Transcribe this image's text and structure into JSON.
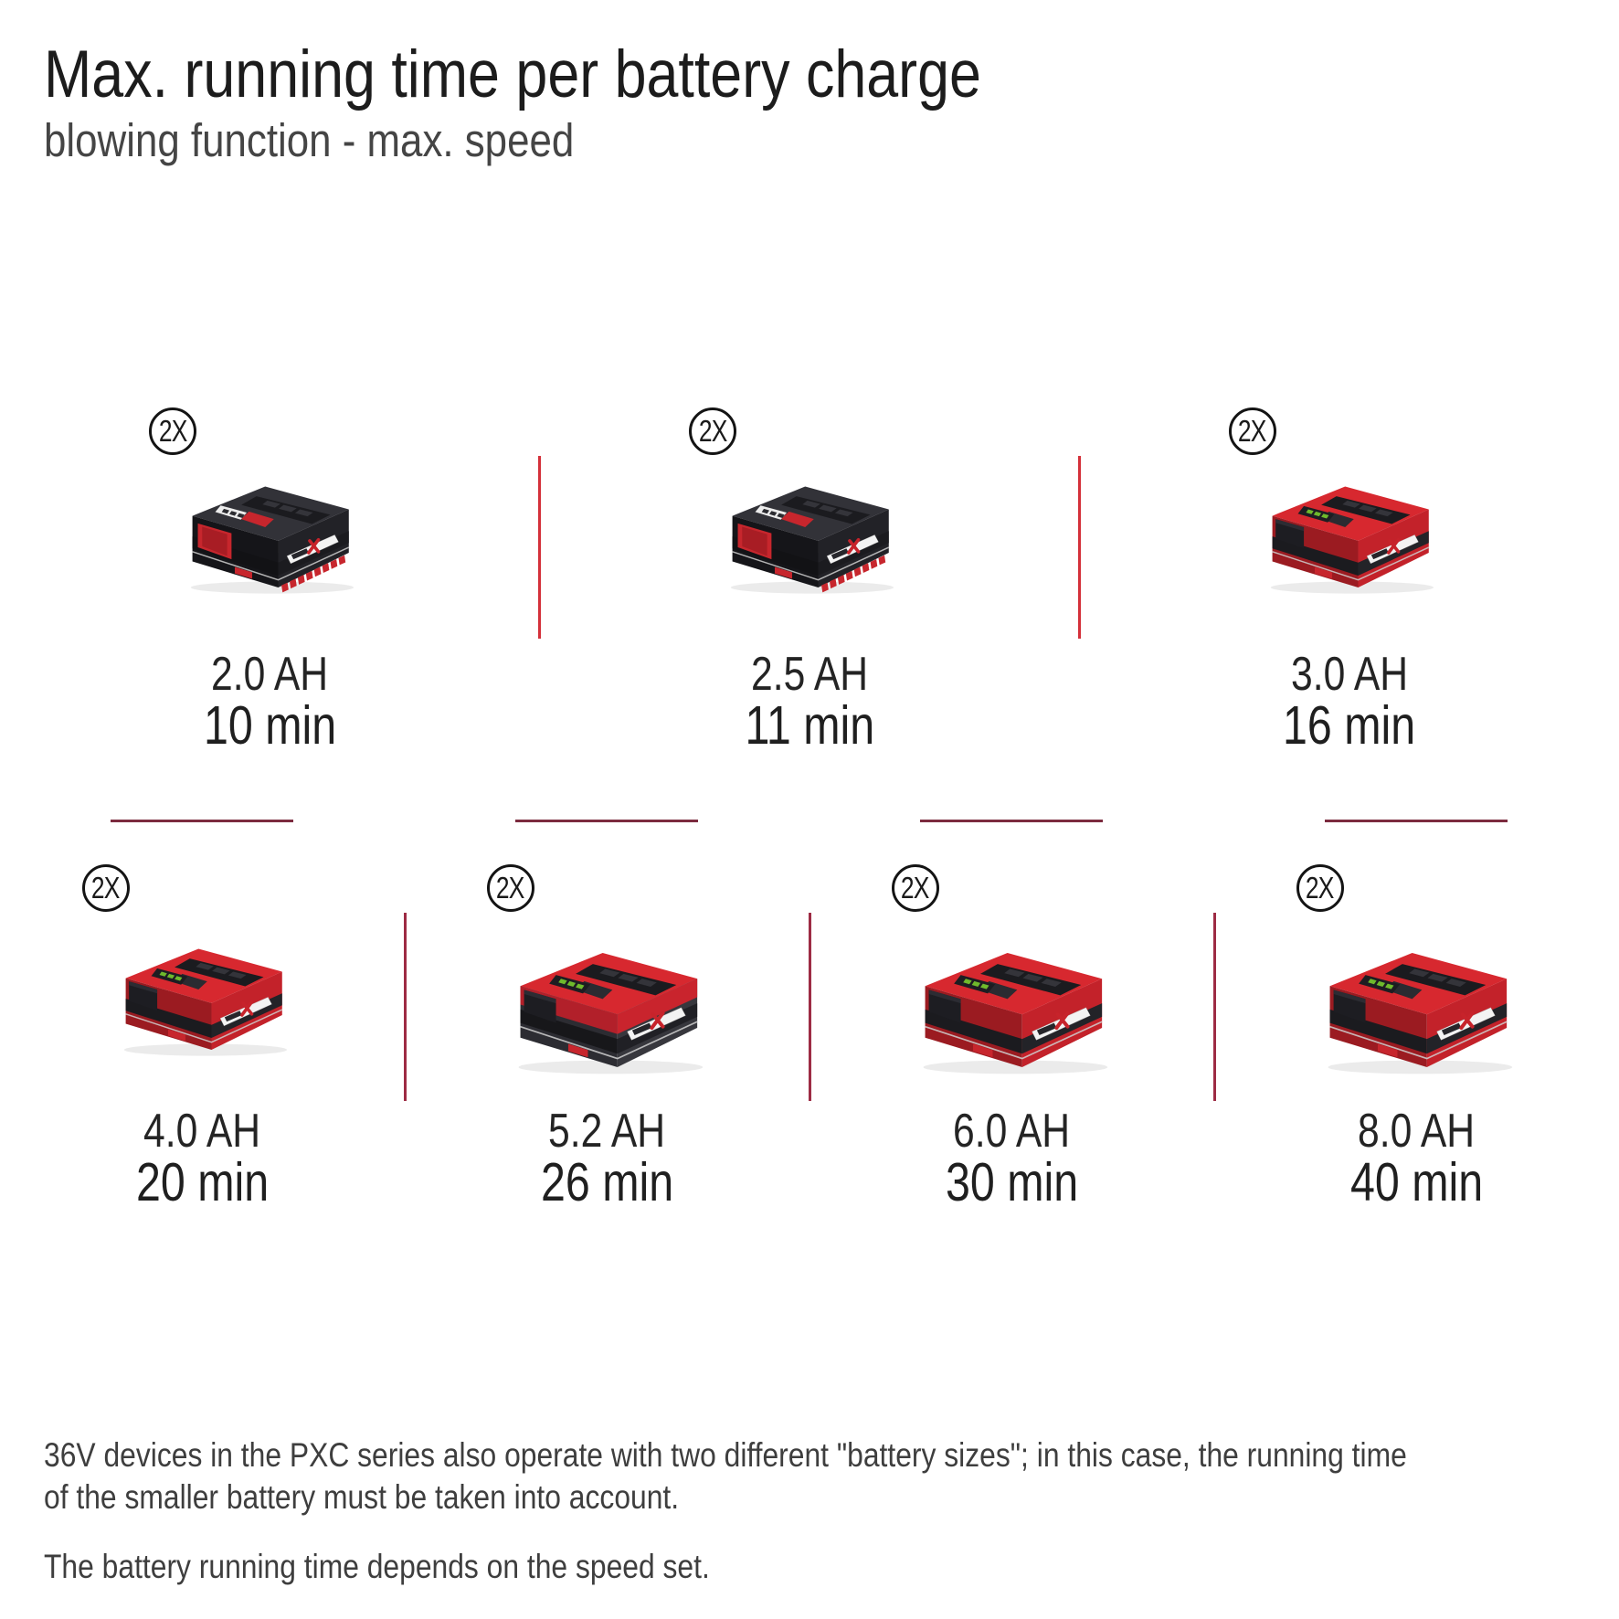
{
  "header": {
    "title": "Max. running time per battery charge",
    "subtitle": "blowing function - max. speed"
  },
  "badge": {
    "label": "2X"
  },
  "rows": [
    {
      "cells": [
        {
          "capacity": "2.0 AH",
          "runtime": "10 min",
          "style": "black-small"
        },
        {
          "capacity": "2.5 AH",
          "runtime": "11 min",
          "style": "black-small"
        },
        {
          "capacity": "3.0 AH",
          "runtime": "16 min",
          "style": "red-small"
        }
      ]
    },
    {
      "cells": [
        {
          "capacity": "4.0 AH",
          "runtime": "20 min",
          "style": "red-small"
        },
        {
          "capacity": "5.2 AH",
          "runtime": "26 min",
          "style": "red-dark-large"
        },
        {
          "capacity": "6.0 AH",
          "runtime": "30 min",
          "style": "red-large"
        },
        {
          "capacity": "8.0 AH",
          "runtime": "40 min",
          "style": "red-large"
        }
      ]
    }
  ],
  "footer": {
    "para1_line1": "36V devices in the PXC series also operate with two different \"battery sizes\"; in this case, the running time",
    "para1_line2": "of the smaller battery must be taken into account.",
    "para2": "The battery running time depends on the speed set."
  },
  "colors": {
    "divider_bright_red": "#d4303a",
    "divider_maroon": "#9d2b44",
    "rule_maroon": "#7c2b3f",
    "einhell_red": "#d4262c",
    "text_dark": "#1f1f1f",
    "text_body": "#3e3e3e",
    "led_green": "#6fba2c"
  },
  "chart_data": {
    "type": "table",
    "title": "Max. running time per battery charge",
    "subtitle": "blowing function - max. speed",
    "categories": [
      "2.0 AH",
      "2.5 AH",
      "3.0 AH",
      "4.0 AH",
      "5.2 AH",
      "6.0 AH",
      "8.0 AH"
    ],
    "values": [
      10,
      11,
      16,
      20,
      26,
      30,
      40
    ],
    "unit": "min",
    "per_category_badge": "2X",
    "notes": [
      "36V devices in the PXC series also operate with two different \"battery sizes\"; in this case, the running time of the smaller battery must be taken into account.",
      "The battery running time depends on the speed set."
    ]
  }
}
